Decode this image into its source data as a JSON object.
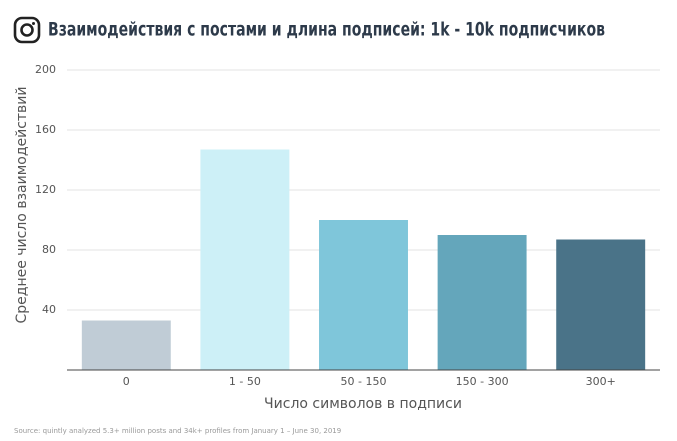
{
  "chart_data": {
    "type": "bar",
    "title": "Взаимодействия с постами и длина подписей: 1k - 10k подписчиков",
    "categories": [
      "0",
      "1 - 50",
      "50 - 150",
      "150 - 300",
      "300+"
    ],
    "values": [
      33,
      147,
      100,
      90,
      87
    ],
    "colors": [
      "#c0ccd6",
      "#cdf0f7",
      "#7fc6da",
      "#64a6bb",
      "#4a7388"
    ],
    "ylim": [
      0,
      200
    ],
    "yticks": [
      40,
      80,
      120,
      160,
      200
    ],
    "grid": true,
    "y_label": "Среднее число взаимодействий",
    "x_label": "Число символов в подписи",
    "source": "Source: quintly analyzed 5.3+ million posts and 34k+ profiles from January 1 – June 30, 2019"
  }
}
